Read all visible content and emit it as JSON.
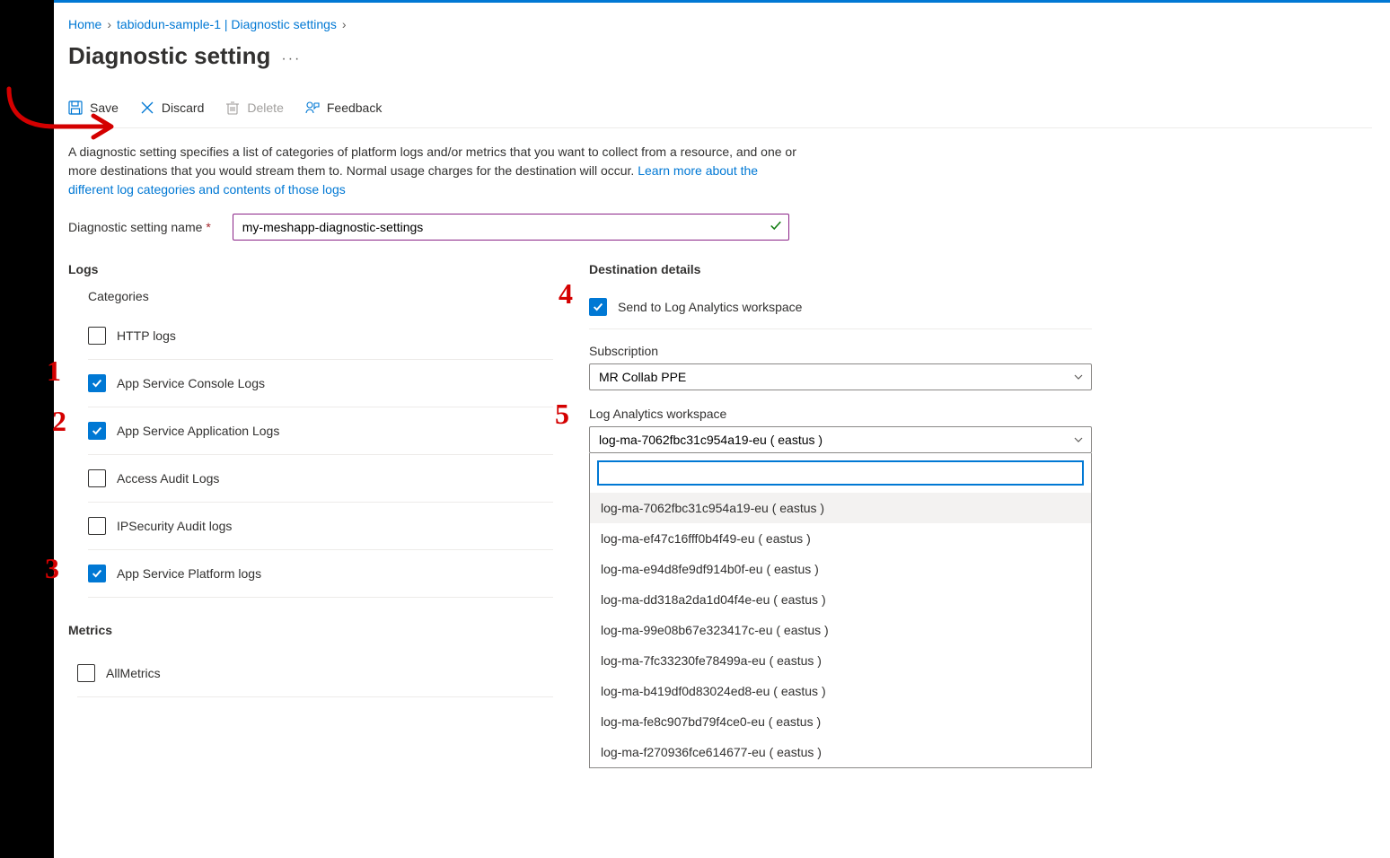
{
  "breadcrumb": {
    "home": "Home",
    "parent": "tabiodun-sample-1 | Diagnostic settings"
  },
  "page_title": "Diagnostic setting",
  "toolbar": {
    "save": "Save",
    "discard": "Discard",
    "delete": "Delete",
    "feedback": "Feedback"
  },
  "description": {
    "text": "A diagnostic setting specifies a list of categories of platform logs and/or metrics that you want to collect from a resource, and one or more destinations that you would stream them to. Normal usage charges for the destination will occur. ",
    "link": "Learn more about the different log categories and contents of those logs"
  },
  "name_field": {
    "label": "Diagnostic setting name",
    "value": "my-meshapp-diagnostic-settings"
  },
  "logs": {
    "heading": "Logs",
    "categories_label": "Categories",
    "items": [
      {
        "label": "HTTP logs",
        "checked": false
      },
      {
        "label": "App Service Console Logs",
        "checked": true
      },
      {
        "label": "App Service Application Logs",
        "checked": true
      },
      {
        "label": "Access Audit Logs",
        "checked": false
      },
      {
        "label": "IPSecurity Audit logs",
        "checked": false
      },
      {
        "label": "App Service Platform logs",
        "checked": true
      }
    ]
  },
  "metrics": {
    "heading": "Metrics",
    "items": [
      {
        "label": "AllMetrics",
        "checked": false
      }
    ]
  },
  "destination": {
    "heading": "Destination details",
    "send_law": {
      "label": "Send to Log Analytics workspace",
      "checked": true
    },
    "subscription": {
      "label": "Subscription",
      "value": "MR Collab PPE"
    },
    "workspace": {
      "label": "Log Analytics workspace",
      "selected": "log-ma-7062fbc31c954a19-eu ( eastus )",
      "search_value": "",
      "options": [
        "log-ma-7062fbc31c954a19-eu ( eastus )",
        "log-ma-ef47c16fff0b4f49-eu ( eastus )",
        "log-ma-e94d8fe9df914b0f-eu ( eastus )",
        "log-ma-dd318a2da1d04f4e-eu ( eastus )",
        "log-ma-99e08b67e323417c-eu ( eastus )",
        "log-ma-7fc33230fe78499a-eu ( eastus )",
        "log-ma-b419df0d83024ed8-eu ( eastus )",
        "log-ma-fe8c907bd79f4ce0-eu ( eastus )",
        "log-ma-f270936fce614677-eu ( eastus )"
      ]
    }
  },
  "annotations": [
    "1",
    "2",
    "3",
    "4",
    "5"
  ]
}
